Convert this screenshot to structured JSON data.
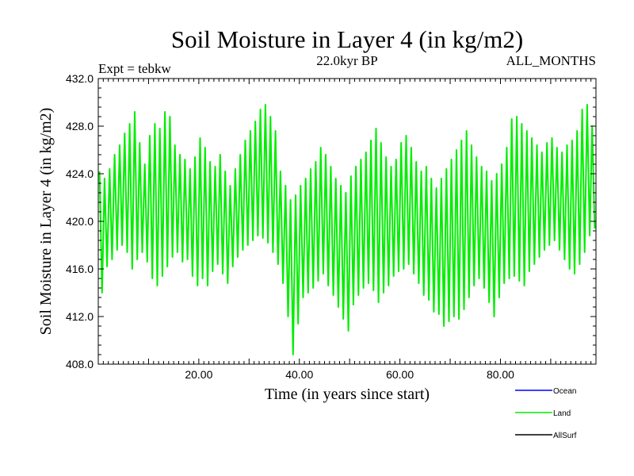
{
  "chart_data": {
    "type": "line",
    "title": "Soil Moisture in Layer 4 (in kg/m2)",
    "subtitle_left": "Expt = tebkw",
    "subtitle_center": "22.0kyr BP",
    "subtitle_right": "ALL_MONTHS",
    "xlabel": "Time (in years since start)",
    "ylabel": "Soil Moisture in Layer 4 (in kg/m2)",
    "xlim": [
      0,
      99
    ],
    "ylim": [
      408,
      432
    ],
    "x_ticks": [
      20,
      40,
      60,
      80
    ],
    "x_tick_labels": [
      "20.00",
      "40.00",
      "60.00",
      "80.00"
    ],
    "y_ticks": [
      408,
      412,
      416,
      420,
      424,
      428,
      432
    ],
    "y_tick_labels": [
      "408.0",
      "412.0",
      "416.0",
      "420.0",
      "424.0",
      "428.0",
      "432.0"
    ],
    "series": [
      {
        "name": "Land",
        "color": "#00ee00",
        "envelope_note": "annual cycle; values are per-year [max, min]",
        "x": [
          0,
          1,
          2,
          3,
          4,
          5,
          6,
          7,
          8,
          9,
          10,
          11,
          12,
          13,
          14,
          15,
          16,
          17,
          18,
          19,
          20,
          21,
          22,
          23,
          24,
          25,
          26,
          27,
          28,
          29,
          30,
          31,
          32,
          33,
          34,
          35,
          36,
          37,
          38,
          39,
          40,
          41,
          42,
          43,
          44,
          45,
          46,
          47,
          48,
          49,
          50,
          51,
          52,
          53,
          54,
          55,
          56,
          57,
          58,
          59,
          60,
          61,
          62,
          63,
          64,
          65,
          66,
          67,
          68,
          69,
          70,
          71,
          72,
          73,
          74,
          75,
          76,
          77,
          78,
          79,
          80,
          81,
          82,
          83,
          84,
          85,
          86,
          87,
          88,
          89,
          90,
          91,
          92,
          93,
          94,
          95,
          96,
          97,
          98
        ],
        "max": [
          424.2,
          423.6,
          424.4,
          425.6,
          426.4,
          427.4,
          428.2,
          429.2,
          426.6,
          424.8,
          427.2,
          428.2,
          427.8,
          429.2,
          428.8,
          426.4,
          425.6,
          425.2,
          424.4,
          425.4,
          427.0,
          426.2,
          425.0,
          424.6,
          425.6,
          424.2,
          423.0,
          424.4,
          425.6,
          426.8,
          427.6,
          428.4,
          429.4,
          429.8,
          428.8,
          427.6,
          424.2,
          423.0,
          421.8,
          422.2,
          423.0,
          423.6,
          424.4,
          425.0,
          426.2,
          425.6,
          424.6,
          423.6,
          423.0,
          422.4,
          423.8,
          424.6,
          425.2,
          425.8,
          426.8,
          427.8,
          426.6,
          425.4,
          424.6,
          425.2,
          426.6,
          427.2,
          426.2,
          425.0,
          424.2,
          424.6,
          423.6,
          422.8,
          423.6,
          424.4,
          425.2,
          426.0,
          426.8,
          427.6,
          426.4,
          425.4,
          424.6,
          424.2,
          423.4,
          424.0,
          424.8,
          426.2,
          428.6,
          428.8,
          428.2,
          427.6,
          427.0,
          426.4,
          425.8,
          426.6,
          427.0,
          426.2,
          425.8,
          426.4,
          426.8,
          427.6,
          429.4,
          429.8,
          428.0
        ],
        "min": [
          414.0,
          416.2,
          416.8,
          417.6,
          418.0,
          417.4,
          416.0,
          416.8,
          417.4,
          416.6,
          415.2,
          414.6,
          415.4,
          416.2,
          417.0,
          417.4,
          416.6,
          416.8,
          415.4,
          414.6,
          415.2,
          414.6,
          415.8,
          416.4,
          415.6,
          414.8,
          416.2,
          417.0,
          417.6,
          418.0,
          418.4,
          418.8,
          418.6,
          418.2,
          417.4,
          416.4,
          414.8,
          412.0,
          408.8,
          411.4,
          413.6,
          414.0,
          414.4,
          415.0,
          415.6,
          414.6,
          413.8,
          412.8,
          411.8,
          410.8,
          413.0,
          413.8,
          414.4,
          414.8,
          414.2,
          413.2,
          414.0,
          414.6,
          415.4,
          415.8,
          416.0,
          416.4,
          415.6,
          414.8,
          413.8,
          413.4,
          412.4,
          412.2,
          411.2,
          411.6,
          412.0,
          411.8,
          412.6,
          413.6,
          414.6,
          415.2,
          414.4,
          413.2,
          412.0,
          413.6,
          414.8,
          415.2,
          415.4,
          415.0,
          414.6,
          415.8,
          416.4,
          417.0,
          417.6,
          418.0,
          418.4,
          417.6,
          416.8,
          416.0,
          415.6,
          416.4,
          417.4,
          418.8,
          419.4
        ]
      }
    ],
    "legend": [
      {
        "name": "Ocean",
        "color": "#0000ff"
      },
      {
        "name": "Land",
        "color": "#00ee00"
      },
      {
        "name": "AllSurf",
        "color": "#000000"
      }
    ]
  }
}
